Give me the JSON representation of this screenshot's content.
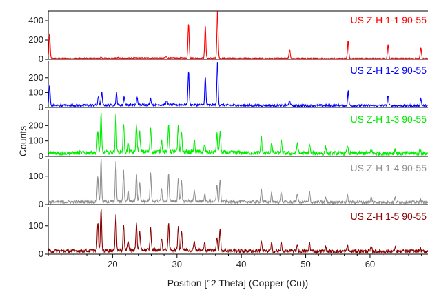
{
  "chart_data": {
    "type": "line",
    "xlabel": "Position [°2 Theta] (Copper (Cu))",
    "ylabel": "Counts",
    "xlim": [
      10,
      69
    ],
    "x_ticks": [
      20,
      30,
      40,
      50,
      60
    ],
    "panels": [
      {
        "name": "US Z-H 1-1 90-55",
        "color": "#ff0000",
        "ylim": [
          0,
          500
        ],
        "y_ticks": [
          0,
          200,
          400
        ],
        "baseline": 8,
        "peaks": [
          [
            10.2,
            260
          ],
          [
            18.2,
            20
          ],
          [
            20.9,
            15
          ],
          [
            28.3,
            20
          ],
          [
            31.8,
            370
          ],
          [
            34.4,
            340
          ],
          [
            36.3,
            500
          ],
          [
            47.5,
            100
          ],
          [
            56.6,
            200
          ],
          [
            62.8,
            150
          ],
          [
            67.9,
            120
          ]
        ]
      },
      {
        "name": "US Z-H 1-2 90-55",
        "color": "#0000ff",
        "ylim": [
          0,
          310
        ],
        "y_ticks": [
          0,
          100,
          200
        ],
        "baseline": 12,
        "peaks": [
          [
            10.2,
            150
          ],
          [
            17.8,
            70
          ],
          [
            18.3,
            100
          ],
          [
            20.6,
            90
          ],
          [
            21.8,
            70
          ],
          [
            23.8,
            60
          ],
          [
            25.9,
            55
          ],
          [
            28.4,
            45
          ],
          [
            31.8,
            240
          ],
          [
            34.4,
            200
          ],
          [
            36.3,
            310
          ],
          [
            47.5,
            50
          ],
          [
            56.6,
            110
          ],
          [
            62.8,
            80
          ],
          [
            67.9,
            60
          ]
        ]
      },
      {
        "name": "US Z-H 1-3 90-55",
        "color": "#00ee00",
        "ylim": [
          0,
          300
        ],
        "y_ticks": [
          0,
          100,
          200
        ],
        "baseline": 20,
        "peaks": [
          [
            17.7,
            160
          ],
          [
            18.2,
            270
          ],
          [
            20.5,
            260
          ],
          [
            21.7,
            210
          ],
          [
            22.4,
            80
          ],
          [
            23.7,
            200
          ],
          [
            24.2,
            150
          ],
          [
            25.9,
            180
          ],
          [
            27.6,
            100
          ],
          [
            28.7,
            200
          ],
          [
            30.2,
            190
          ],
          [
            30.7,
            150
          ],
          [
            32.7,
            90
          ],
          [
            34.3,
            70
          ],
          [
            36.2,
            140
          ],
          [
            36.7,
            160
          ],
          [
            43.1,
            120
          ],
          [
            44.7,
            90
          ],
          [
            46.2,
            100
          ],
          [
            48.7,
            90
          ],
          [
            50.6,
            80
          ],
          [
            53.1,
            60
          ],
          [
            56.5,
            70
          ],
          [
            60.2,
            50
          ],
          [
            63.9,
            50
          ],
          [
            67.8,
            45
          ]
        ]
      },
      {
        "name": "US Z-H 1-4 90-55",
        "color": "#909090",
        "ylim": [
          0,
          160
        ],
        "y_ticks": [
          0,
          100
        ],
        "baseline": 8,
        "peaks": [
          [
            17.7,
            100
          ],
          [
            18.2,
            160
          ],
          [
            20.5,
            145
          ],
          [
            21.7,
            115
          ],
          [
            22.4,
            45
          ],
          [
            23.7,
            110
          ],
          [
            24.2,
            80
          ],
          [
            25.9,
            105
          ],
          [
            27.6,
            50
          ],
          [
            28.7,
            105
          ],
          [
            30.2,
            90
          ],
          [
            30.7,
            80
          ],
          [
            32.7,
            45
          ],
          [
            34.3,
            35
          ],
          [
            36.2,
            65
          ],
          [
            36.7,
            85
          ],
          [
            43.1,
            55
          ],
          [
            44.7,
            40
          ],
          [
            46.2,
            45
          ],
          [
            48.7,
            40
          ],
          [
            50.6,
            45
          ],
          [
            53.1,
            25
          ],
          [
            56.5,
            30
          ],
          [
            60.2,
            25
          ],
          [
            63.9,
            25
          ],
          [
            67.8,
            20
          ]
        ]
      },
      {
        "name": "US Z-H 1-5 90-55",
        "color": "#8b0000",
        "ylim": [
          0,
          165
        ],
        "y_ticks": [
          0,
          100
        ],
        "baseline": 10,
        "peaks": [
          [
            17.7,
            110
          ],
          [
            18.2,
            165
          ],
          [
            20.5,
            140
          ],
          [
            21.7,
            105
          ],
          [
            22.4,
            45
          ],
          [
            23.7,
            105
          ],
          [
            24.2,
            75
          ],
          [
            25.9,
            90
          ],
          [
            27.6,
            50
          ],
          [
            28.7,
            100
          ],
          [
            30.2,
            95
          ],
          [
            30.7,
            80
          ],
          [
            32.7,
            45
          ],
          [
            34.3,
            35
          ],
          [
            36.2,
            60
          ],
          [
            36.7,
            85
          ],
          [
            43.1,
            45
          ],
          [
            44.7,
            35
          ],
          [
            46.2,
            40
          ],
          [
            48.7,
            35
          ],
          [
            50.6,
            40
          ],
          [
            53.1,
            25
          ],
          [
            56.5,
            30
          ],
          [
            60.2,
            25
          ],
          [
            63.9,
            25
          ],
          [
            67.8,
            20
          ]
        ]
      }
    ]
  }
}
